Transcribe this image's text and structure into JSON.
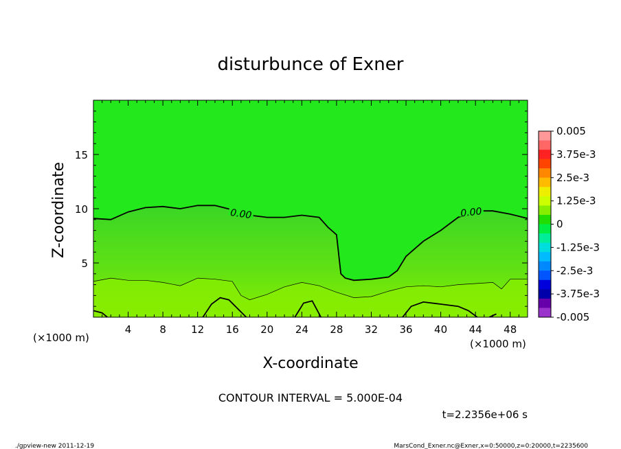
{
  "chart_data": {
    "type": "heatmap",
    "title": "disturbunce of Exner",
    "xlabel": "X-coordinate",
    "ylabel": "Z-coordinate",
    "x_unit": "(×1000 m)",
    "y_unit": "(×1000 m)",
    "xlim": [
      0,
      50
    ],
    "ylim": [
      0,
      20
    ],
    "xticks": [
      "4",
      "8",
      "12",
      "16",
      "20",
      "24",
      "28",
      "32",
      "36",
      "40",
      "44",
      "48"
    ],
    "yticks": [
      "5",
      "10",
      "15"
    ],
    "contour_interval_text": "CONTOUR INTERVAL = 5.000E-04",
    "time_text": "t=2.2356e+06 s",
    "contour_labels": [
      "0.00",
      "0.00"
    ],
    "colorbar": {
      "labels": [
        "0.005",
        "3.75e-3",
        "2.5e-3",
        "1.25e-3",
        "0",
        "-1.25e-3",
        "-2.5e-3",
        "-3.75e-3",
        "-0.005"
      ],
      "colors": [
        "#ff9999",
        "#ff6666",
        "#ff2222",
        "#ff4400",
        "#ff8800",
        "#ffbb00",
        "#eeee00",
        "#ccff00",
        "#88ee00",
        "#22dd00",
        "#00ee44",
        "#00ee99",
        "#00dddd",
        "#00bbff",
        "#0088ff",
        "#0055ff",
        "#0000dd",
        "#0000aa",
        "#6600aa",
        "#9933cc"
      ]
    },
    "zero_contour": {
      "x": [
        0,
        2,
        4,
        6,
        8,
        10,
        12,
        14,
        16,
        18,
        20,
        22,
        24,
        26,
        27,
        28,
        28.5,
        29,
        30,
        32,
        34,
        35,
        36,
        38,
        40,
        42,
        44,
        46,
        48,
        50
      ],
      "y": [
        9.1,
        9.0,
        9.7,
        10.1,
        10.2,
        10.0,
        10.3,
        10.3,
        9.9,
        9.4,
        9.2,
        9.2,
        9.4,
        9.2,
        8.3,
        7.6,
        4.0,
        3.6,
        3.4,
        3.5,
        3.7,
        4.3,
        5.6,
        7.0,
        8.0,
        9.2,
        9.8,
        9.8,
        9.5,
        9.1
      ]
    },
    "thin_contour": {
      "x": [
        0,
        2,
        4,
        6,
        8,
        10,
        12,
        14,
        16,
        17,
        18,
        20,
        22,
        24,
        26,
        28,
        30,
        32,
        34,
        36,
        38,
        40,
        42,
        44,
        46,
        47,
        48,
        50
      ],
      "y": [
        3.3,
        3.6,
        3.4,
        3.4,
        3.2,
        2.9,
        3.6,
        3.5,
        3.3,
        2.0,
        1.6,
        2.1,
        2.8,
        3.2,
        2.9,
        2.3,
        1.8,
        1.9,
        2.4,
        2.8,
        2.9,
        2.8,
        3.0,
        3.1,
        3.2,
        2.6,
        3.5,
        3.5
      ]
    },
    "low_contours": [
      {
        "x": [
          12.6,
          13.6,
          14.6,
          15.6,
          16.6,
          17.6
        ],
        "y": [
          0.0,
          1.2,
          1.8,
          1.6,
          0.8,
          0.0
        ]
      },
      {
        "x": [
          23.2,
          24.2,
          25.2,
          26.2
        ],
        "y": [
          0.0,
          1.3,
          1.5,
          0.0
        ]
      },
      {
        "x": [
          35.6,
          36.6,
          38,
          40,
          42,
          43.2,
          44.2
        ],
        "y": [
          0.0,
          1.0,
          1.4,
          1.2,
          1.0,
          0.6,
          0.0
        ]
      },
      {
        "x": [
          0,
          1,
          1.6
        ],
        "y": [
          0.6,
          0.4,
          0.0
        ]
      },
      {
        "x": [
          45.6,
          46.4
        ],
        "y": [
          0.0,
          0.3
        ]
      }
    ]
  },
  "footer": {
    "left": "./gpview-new  2011-12-19",
    "right": "MarsCond_Exner.nc@Exner,x=0:50000,z=0:20000,t=2235600"
  }
}
